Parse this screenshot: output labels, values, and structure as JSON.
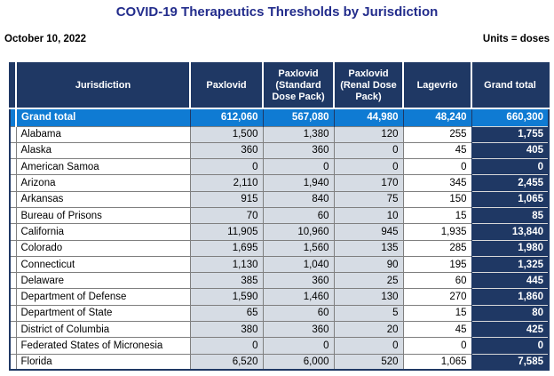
{
  "title": "COVID-19 Therapeutics Thresholds by Jurisdiction",
  "date": "October 10, 2022",
  "units_label": "Units = doses",
  "colors": {
    "header_bg": "#1F3864",
    "grand_total_row_bg": "#0F7BD3",
    "grand_total_col_bg": "#1F3864",
    "shaded_cell_bg": "#D6DCE4",
    "gridline": "#7F7F7F",
    "title_text": "#232D8C"
  },
  "table": {
    "columns": [
      "Jurisdiction",
      "Paxlovid",
      "Paxlovid (Standard Dose Pack)",
      "Paxlovid (Renal Dose Pack)",
      "Lagevrio",
      "Grand total"
    ],
    "grand_total": {
      "label": "Grand total",
      "values": [
        "612,060",
        "567,080",
        "44,980",
        "48,240",
        "660,300"
      ]
    },
    "rows": [
      {
        "jurisdiction": "Alabama",
        "values": [
          "1,500",
          "1,380",
          "120",
          "255",
          "1,755"
        ]
      },
      {
        "jurisdiction": "Alaska",
        "values": [
          "360",
          "360",
          "0",
          "45",
          "405"
        ]
      },
      {
        "jurisdiction": "American Samoa",
        "values": [
          "0",
          "0",
          "0",
          "0",
          "0"
        ]
      },
      {
        "jurisdiction": "Arizona",
        "values": [
          "2,110",
          "1,940",
          "170",
          "345",
          "2,455"
        ]
      },
      {
        "jurisdiction": "Arkansas",
        "values": [
          "915",
          "840",
          "75",
          "150",
          "1,065"
        ]
      },
      {
        "jurisdiction": "Bureau of Prisons",
        "values": [
          "70",
          "60",
          "10",
          "15",
          "85"
        ]
      },
      {
        "jurisdiction": "California",
        "values": [
          "11,905",
          "10,960",
          "945",
          "1,935",
          "13,840"
        ]
      },
      {
        "jurisdiction": "Colorado",
        "values": [
          "1,695",
          "1,560",
          "135",
          "285",
          "1,980"
        ]
      },
      {
        "jurisdiction": "Connecticut",
        "values": [
          "1,130",
          "1,040",
          "90",
          "195",
          "1,325"
        ]
      },
      {
        "jurisdiction": "Delaware",
        "values": [
          "385",
          "360",
          "25",
          "60",
          "445"
        ]
      },
      {
        "jurisdiction": "Department of Defense",
        "values": [
          "1,590",
          "1,460",
          "130",
          "270",
          "1,860"
        ]
      },
      {
        "jurisdiction": "Department of State",
        "values": [
          "65",
          "60",
          "5",
          "15",
          "80"
        ]
      },
      {
        "jurisdiction": "District of Columbia",
        "values": [
          "380",
          "360",
          "20",
          "45",
          "425"
        ]
      },
      {
        "jurisdiction": "Federated States of Micronesia",
        "values": [
          "0",
          "0",
          "0",
          "0",
          "0"
        ]
      },
      {
        "jurisdiction": "Florida",
        "values": [
          "6,520",
          "6,000",
          "520",
          "1,065",
          "7,585"
        ]
      }
    ]
  }
}
